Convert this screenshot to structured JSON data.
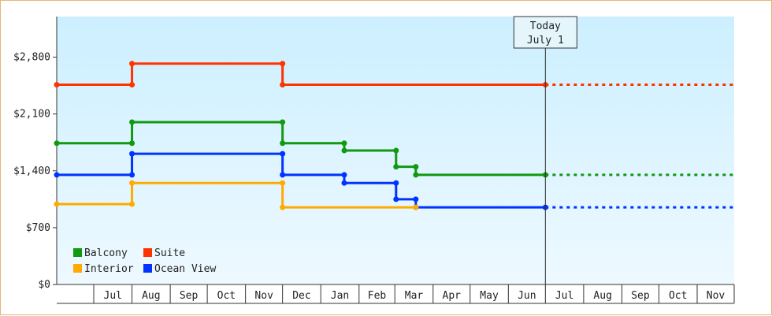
{
  "chart_data": {
    "type": "line",
    "step": true,
    "y_ticks": [
      {
        "value": 0,
        "label": "$0"
      },
      {
        "value": 700,
        "label": "$700"
      },
      {
        "value": 1400,
        "label": "$1,400"
      },
      {
        "value": 2100,
        "label": "$2,100"
      },
      {
        "value": 2800,
        "label": "$2,800"
      }
    ],
    "ylim": [
      0,
      3300
    ],
    "x_range": [
      "2023-06-01",
      "2024-12-01"
    ],
    "months": [
      {
        "label": "Jul",
        "start": "2023-07-01",
        "end": "2023-08-01"
      },
      {
        "label": "Aug",
        "start": "2023-08-01",
        "end": "2023-09-01"
      },
      {
        "label": "Sep",
        "start": "2023-09-01",
        "end": "2023-10-01"
      },
      {
        "label": "Oct",
        "start": "2023-10-01",
        "end": "2023-11-01"
      },
      {
        "label": "Nov",
        "start": "2023-11-01",
        "end": "2023-12-01"
      },
      {
        "label": "Dec",
        "start": "2023-12-01",
        "end": "2024-01-01"
      },
      {
        "label": "Jan",
        "start": "2024-01-01",
        "end": "2024-02-01"
      },
      {
        "label": "Feb",
        "start": "2024-02-01",
        "end": "2024-03-01"
      },
      {
        "label": "Mar",
        "start": "2024-03-01",
        "end": "2024-04-01"
      },
      {
        "label": "Apr",
        "start": "2024-04-01",
        "end": "2024-05-01"
      },
      {
        "label": "May",
        "start": "2024-05-01",
        "end": "2024-06-01"
      },
      {
        "label": "Jun",
        "start": "2024-06-01",
        "end": "2024-07-01"
      },
      {
        "label": "Jul",
        "start": "2024-07-01",
        "end": "2024-08-01"
      },
      {
        "label": "Aug",
        "start": "2024-08-01",
        "end": "2024-09-01"
      },
      {
        "label": "Sep",
        "start": "2024-09-01",
        "end": "2024-10-01"
      },
      {
        "label": "Oct",
        "start": "2024-10-01",
        "end": "2024-11-01"
      },
      {
        "label": "Nov",
        "start": "2024-11-01",
        "end": "2024-12-01"
      }
    ],
    "today": {
      "date": "2024-07-01",
      "line1": "Today",
      "line2": "July 1"
    },
    "projection_end": "2024-12-01",
    "series": [
      {
        "name": "Suite",
        "color": "#ff3300",
        "points": [
          {
            "x": "2023-06-01",
            "y": 2460
          },
          {
            "x": "2023-08-01",
            "y": 2460
          },
          {
            "x": "2023-08-01",
            "y": 2720
          },
          {
            "x": "2023-12-01",
            "y": 2720
          },
          {
            "x": "2023-12-01",
            "y": 2460
          },
          {
            "x": "2024-07-01",
            "y": 2460
          }
        ]
      },
      {
        "name": "Balcony",
        "color": "#119911",
        "points": [
          {
            "x": "2023-06-01",
            "y": 1740
          },
          {
            "x": "2023-08-01",
            "y": 1740
          },
          {
            "x": "2023-08-01",
            "y": 2000
          },
          {
            "x": "2023-12-01",
            "y": 2000
          },
          {
            "x": "2023-12-01",
            "y": 1740
          },
          {
            "x": "2024-01-20",
            "y": 1740
          },
          {
            "x": "2024-01-20",
            "y": 1650
          },
          {
            "x": "2024-03-02",
            "y": 1650
          },
          {
            "x": "2024-03-02",
            "y": 1450
          },
          {
            "x": "2024-03-18",
            "y": 1450
          },
          {
            "x": "2024-03-18",
            "y": 1350
          },
          {
            "x": "2024-07-01",
            "y": 1350
          }
        ]
      },
      {
        "name": "Ocean View",
        "color": "#0033ff",
        "points": [
          {
            "x": "2023-06-01",
            "y": 1350
          },
          {
            "x": "2023-08-01",
            "y": 1350
          },
          {
            "x": "2023-08-01",
            "y": 1610
          },
          {
            "x": "2023-12-01",
            "y": 1610
          },
          {
            "x": "2023-12-01",
            "y": 1350
          },
          {
            "x": "2024-01-20",
            "y": 1350
          },
          {
            "x": "2024-01-20",
            "y": 1250
          },
          {
            "x": "2024-03-02",
            "y": 1250
          },
          {
            "x": "2024-03-02",
            "y": 1050
          },
          {
            "x": "2024-03-18",
            "y": 1050
          },
          {
            "x": "2024-03-18",
            "y": 950
          },
          {
            "x": "2024-07-01",
            "y": 950
          }
        ]
      },
      {
        "name": "Interior",
        "color": "#ffaa00",
        "points": [
          {
            "x": "2023-06-01",
            "y": 990
          },
          {
            "x": "2023-08-01",
            "y": 990
          },
          {
            "x": "2023-08-01",
            "y": 1250
          },
          {
            "x": "2023-12-01",
            "y": 1250
          },
          {
            "x": "2023-12-01",
            "y": 950
          },
          {
            "x": "2024-03-18",
            "y": 950
          }
        ]
      }
    ],
    "projected_series": [
      "Suite",
      "Balcony",
      "Ocean View"
    ],
    "legend": {
      "placement": "bottom-left",
      "items": [
        {
          "name": "Balcony",
          "color": "#119911"
        },
        {
          "name": "Suite",
          "color": "#ff3300"
        },
        {
          "name": "Interior",
          "color": "#ffaa00"
        },
        {
          "name": "Ocean View",
          "color": "#0033ff"
        }
      ]
    },
    "background_gradient": [
      "#ccefff",
      "#eef9ff"
    ]
  }
}
